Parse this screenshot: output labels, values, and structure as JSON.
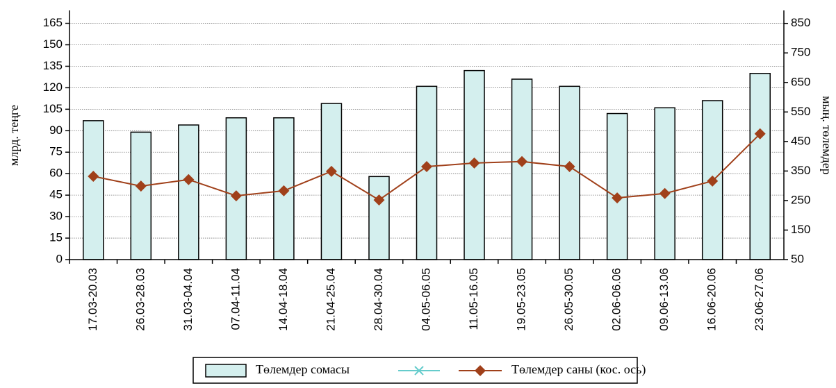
{
  "chart_data": {
    "type": "bar",
    "y_label": "млрд. теңге",
    "y2_label": "мың. төлемдер",
    "categories": [
      "17.03-20.03",
      "26.03-28.03",
      "31.03-04.04",
      "07.04-11.04",
      "14.04-18.04",
      "21.04-25.04",
      "28.04-30.04",
      "04.05-06.05",
      "11.05-16.05",
      "19.05-23.05",
      "26.05-30.05",
      "02.06-06.06",
      "09.06-13.06",
      "16.06-20.06",
      "23.06-27.06"
    ],
    "series": [
      {
        "name": "Төлемдер сомасы",
        "type": "bar",
        "color": "#d4efee",
        "values": [
          97,
          89,
          94,
          99,
          99,
          109,
          58,
          121,
          132,
          126,
          121,
          102,
          106,
          111,
          130
        ]
      },
      {
        "name": "Төлемдер саны (кос. ось)",
        "type": "line",
        "axis": "y2",
        "color": "#a0401a",
        "values": [
          332,
          299,
          321,
          266,
          283,
          349,
          252,
          365,
          377,
          382,
          365,
          259,
          274,
          316,
          476
        ]
      }
    ],
    "ylim": [
      0,
      174
    ],
    "yticks": [
      0,
      15,
      30,
      45,
      60,
      75,
      90,
      105,
      120,
      135,
      150,
      165
    ],
    "y2lim": [
      50,
      894
    ],
    "y2ticks": [
      50,
      150,
      250,
      350,
      450,
      550,
      650,
      750,
      850
    ],
    "grid": true
  }
}
